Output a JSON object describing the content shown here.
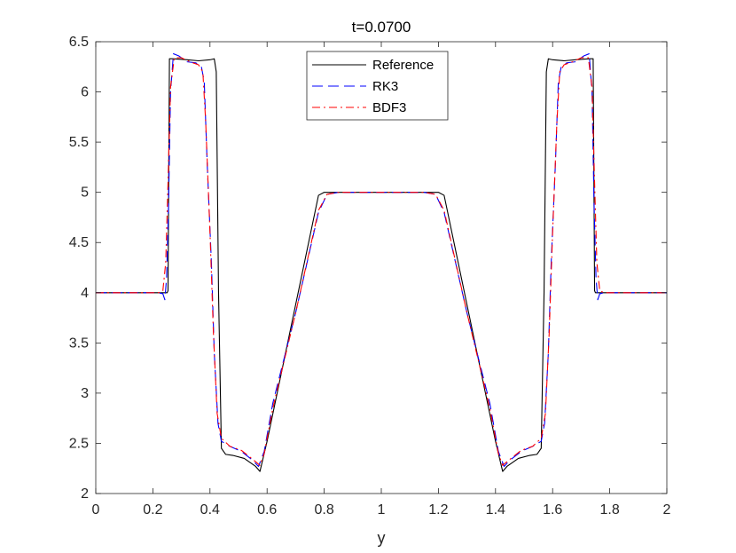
{
  "chart_data": {
    "type": "line",
    "title": "t=0.0700",
    "xlabel": "y",
    "ylabel": "",
    "xlim": [
      0,
      2
    ],
    "ylim": [
      2,
      6.5
    ],
    "xticks": [
      "0",
      "0.2",
      "0.4",
      "0.6",
      "0.8",
      "1",
      "1.2",
      "1.4",
      "1.6",
      "1.8",
      "2"
    ],
    "yticks": [
      "2",
      "2.5",
      "3",
      "3.5",
      "4",
      "4.5",
      "5",
      "5.5",
      "6",
      "6.5"
    ],
    "grid": false,
    "legend_position": "top-center",
    "series": [
      {
        "name": "Reference",
        "color": "#000000",
        "style": "solid",
        "points": [
          [
            0,
            4
          ],
          [
            0.23,
            4
          ],
          [
            0.25,
            4
          ],
          [
            0.253,
            4.02
          ],
          [
            0.258,
            6.33
          ],
          [
            0.27,
            6.33
          ],
          [
            0.32,
            6.32
          ],
          [
            0.36,
            6.31
          ],
          [
            0.4,
            6.32
          ],
          [
            0.415,
            6.33
          ],
          [
            0.422,
            6.2
          ],
          [
            0.43,
            4.0
          ],
          [
            0.44,
            2.45
          ],
          [
            0.455,
            2.39
          ],
          [
            0.48,
            2.38
          ],
          [
            0.52,
            2.35
          ],
          [
            0.56,
            2.27
          ],
          [
            0.575,
            2.22
          ],
          [
            0.6,
            2.52
          ],
          [
            0.78,
            4.97
          ],
          [
            0.8,
            5.0
          ],
          [
            1.0,
            5.0
          ],
          [
            1.2,
            5.0
          ],
          [
            1.22,
            4.97
          ],
          [
            1.4,
            2.52
          ],
          [
            1.425,
            2.22
          ],
          [
            1.44,
            2.27
          ],
          [
            1.48,
            2.35
          ],
          [
            1.52,
            2.38
          ],
          [
            1.545,
            2.39
          ],
          [
            1.56,
            2.45
          ],
          [
            1.57,
            4.0
          ],
          [
            1.578,
            6.2
          ],
          [
            1.585,
            6.33
          ],
          [
            1.6,
            6.32
          ],
          [
            1.64,
            6.31
          ],
          [
            1.68,
            6.32
          ],
          [
            1.73,
            6.33
          ],
          [
            1.742,
            6.33
          ],
          [
            1.747,
            4.02
          ],
          [
            1.75,
            4
          ],
          [
            1.77,
            4
          ],
          [
            2,
            4
          ]
        ]
      },
      {
        "name": "RK3",
        "color": "#0000ff",
        "style": "dashed",
        "points": [
          [
            0,
            4
          ],
          [
            0.22,
            4
          ],
          [
            0.235,
            3.99
          ],
          [
            0.242,
            3.93
          ],
          [
            0.248,
            4.15
          ],
          [
            0.255,
            4.9
          ],
          [
            0.262,
            6.0
          ],
          [
            0.272,
            6.38
          ],
          [
            0.29,
            6.36
          ],
          [
            0.32,
            6.3
          ],
          [
            0.35,
            6.29
          ],
          [
            0.37,
            6.25
          ],
          [
            0.38,
            6.1
          ],
          [
            0.39,
            5.3
          ],
          [
            0.405,
            4.3
          ],
          [
            0.415,
            3.4
          ],
          [
            0.428,
            2.7
          ],
          [
            0.44,
            2.52
          ],
          [
            0.47,
            2.47
          ],
          [
            0.51,
            2.42
          ],
          [
            0.55,
            2.33
          ],
          [
            0.57,
            2.27
          ],
          [
            0.59,
            2.42
          ],
          [
            0.62,
            2.9
          ],
          [
            0.7,
            3.8
          ],
          [
            0.78,
            4.8
          ],
          [
            0.81,
            4.98
          ],
          [
            0.85,
            5.0
          ],
          [
            1.0,
            5.0
          ],
          [
            1.15,
            5.0
          ],
          [
            1.19,
            4.98
          ],
          [
            1.22,
            4.8
          ],
          [
            1.3,
            3.8
          ],
          [
            1.38,
            2.9
          ],
          [
            1.41,
            2.42
          ],
          [
            1.43,
            2.27
          ],
          [
            1.45,
            2.33
          ],
          [
            1.49,
            2.42
          ],
          [
            1.53,
            2.47
          ],
          [
            1.56,
            2.52
          ],
          [
            1.572,
            2.7
          ],
          [
            1.585,
            3.4
          ],
          [
            1.595,
            4.3
          ],
          [
            1.61,
            5.3
          ],
          [
            1.62,
            6.1
          ],
          [
            1.63,
            6.25
          ],
          [
            1.65,
            6.29
          ],
          [
            1.68,
            6.3
          ],
          [
            1.71,
            6.36
          ],
          [
            1.728,
            6.38
          ],
          [
            1.738,
            6.0
          ],
          [
            1.745,
            4.9
          ],
          [
            1.752,
            4.15
          ],
          [
            1.758,
            3.93
          ],
          [
            1.765,
            3.99
          ],
          [
            1.78,
            4
          ],
          [
            2,
            4
          ]
        ]
      },
      {
        "name": "BDF3",
        "color": "#ff0000",
        "style": "dashdot",
        "points": [
          [
            0,
            4
          ],
          [
            0.22,
            4
          ],
          [
            0.235,
            4.02
          ],
          [
            0.245,
            4.3
          ],
          [
            0.253,
            5.1
          ],
          [
            0.262,
            6.05
          ],
          [
            0.275,
            6.34
          ],
          [
            0.3,
            6.34
          ],
          [
            0.33,
            6.3
          ],
          [
            0.36,
            6.27
          ],
          [
            0.375,
            6.2
          ],
          [
            0.385,
            5.7
          ],
          [
            0.4,
            4.6
          ],
          [
            0.412,
            3.6
          ],
          [
            0.425,
            2.8
          ],
          [
            0.44,
            2.55
          ],
          [
            0.47,
            2.47
          ],
          [
            0.51,
            2.43
          ],
          [
            0.55,
            2.34
          ],
          [
            0.575,
            2.28
          ],
          [
            0.59,
            2.4
          ],
          [
            0.62,
            2.85
          ],
          [
            0.7,
            3.8
          ],
          [
            0.78,
            4.82
          ],
          [
            0.81,
            4.98
          ],
          [
            0.85,
            5.0
          ],
          [
            1.0,
            5.0
          ],
          [
            1.15,
            5.0
          ],
          [
            1.19,
            4.98
          ],
          [
            1.22,
            4.82
          ],
          [
            1.3,
            3.8
          ],
          [
            1.38,
            2.85
          ],
          [
            1.41,
            2.4
          ],
          [
            1.425,
            2.28
          ],
          [
            1.45,
            2.34
          ],
          [
            1.49,
            2.43
          ],
          [
            1.53,
            2.47
          ],
          [
            1.56,
            2.55
          ],
          [
            1.575,
            2.8
          ],
          [
            1.588,
            3.6
          ],
          [
            1.6,
            4.6
          ],
          [
            1.615,
            5.7
          ],
          [
            1.625,
            6.2
          ],
          [
            1.64,
            6.27
          ],
          [
            1.67,
            6.3
          ],
          [
            1.7,
            6.34
          ],
          [
            1.725,
            6.34
          ],
          [
            1.738,
            6.05
          ],
          [
            1.747,
            5.1
          ],
          [
            1.755,
            4.3
          ],
          [
            1.765,
            4.02
          ],
          [
            1.78,
            4
          ],
          [
            2,
            4
          ]
        ]
      }
    ]
  }
}
